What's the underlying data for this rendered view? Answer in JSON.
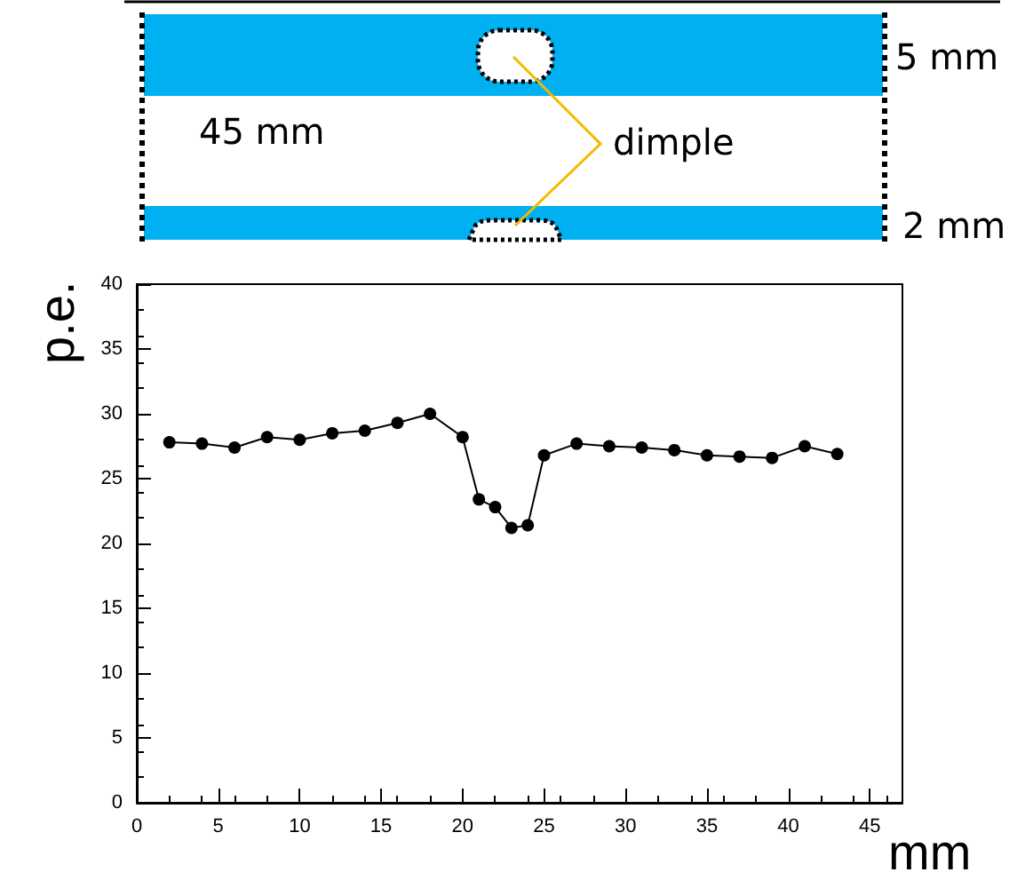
{
  "chart_data": {
    "type": "line",
    "xlabel": "mm",
    "ylabel": "p.e.",
    "x": [
      2,
      4,
      6,
      8,
      10,
      12,
      14,
      16,
      18,
      20,
      21,
      22,
      23,
      24,
      25,
      27,
      29,
      31,
      33,
      35,
      37,
      39,
      41,
      43
    ],
    "series": [
      {
        "color": "#000000",
        "values": [
          27.8,
          27.7,
          27.4,
          28.2,
          28.0,
          28.5,
          28.7,
          29.3,
          30.0,
          28.2,
          23.4,
          22.8,
          21.2,
          21.4,
          26.8,
          27.7,
          27.5,
          27.4,
          27.2,
          26.8,
          26.7,
          26.6,
          27.5,
          26.9
        ]
      }
    ],
    "xlim": [
      0,
      47
    ],
    "xticks": [
      0,
      5,
      10,
      15,
      20,
      25,
      30,
      35,
      40,
      45
    ],
    "ylim": [
      0,
      40
    ],
    "yticks": [
      0,
      5,
      10,
      15,
      20,
      25,
      30,
      35,
      40
    ],
    "marker": "circle",
    "line_style": "solid",
    "annotations": [
      "45 mm",
      "dimple",
      "5 mm",
      "2 mm"
    ]
  }
}
